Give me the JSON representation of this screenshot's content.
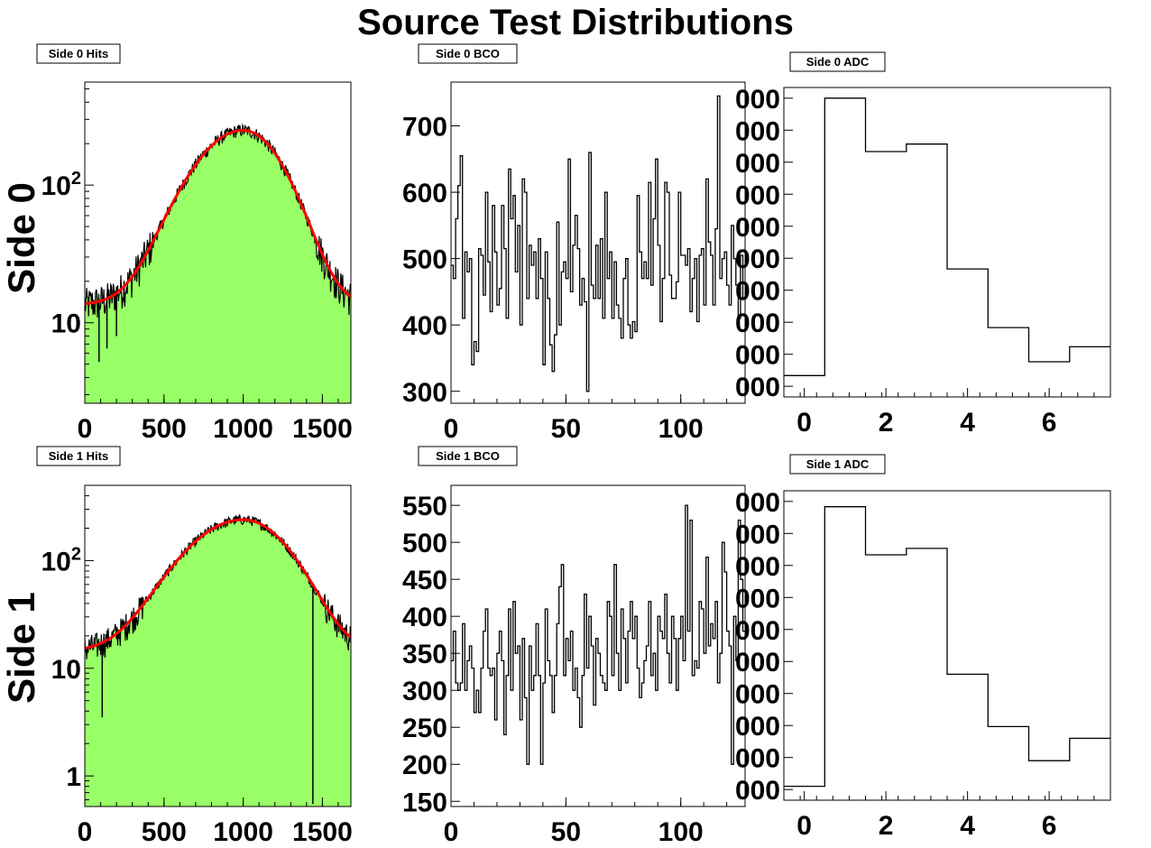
{
  "page_title": "Source Test Distributions",
  "row_labels": [
    "Side 0",
    "Side 1"
  ],
  "colors": {
    "fill": "#99ff66",
    "fit": "#ff0000",
    "line": "#000000"
  },
  "chart_data": [
    {
      "id": "s0-hits",
      "label": "Side 0 Hits",
      "type": "area",
      "log_y": true,
      "xlim": [
        0,
        1680
      ],
      "ylim": [
        2.6,
        560
      ],
      "x_ticks": [
        0,
        500,
        1000,
        1500
      ],
      "x_tick_labels": [
        "0",
        "500",
        "1000",
        "1500"
      ],
      "y_ticks": [
        10,
        100
      ],
      "y_tick_labels": [
        "10",
        "10²"
      ],
      "fit": {
        "peak_x": 1000,
        "peak_y": 250,
        "sigma_left": 270,
        "sigma_right": 220,
        "baseline": 13.5,
        "x_end": 1680
      },
      "spikes": [
        {
          "x": 90,
          "y": 5.2
        },
        {
          "x": 140,
          "y": 6.5
        },
        {
          "x": 200,
          "y": 8
        }
      ]
    },
    {
      "id": "s0-bco",
      "label": "Side 0 BCO",
      "type": "step",
      "xlim": [
        0,
        128
      ],
      "ylim": [
        282,
        766
      ],
      "x_ticks": [
        0,
        50,
        100
      ],
      "x_tick_labels": [
        "0",
        "50",
        "100"
      ],
      "y_ticks": [
        300,
        400,
        500,
        600,
        700
      ],
      "y_tick_labels": [
        "300",
        "400",
        "500",
        "600",
        "700"
      ],
      "values": [
        490,
        470,
        560,
        610,
        655,
        410,
        510,
        480,
        500,
        340,
        375,
        360,
        515,
        505,
        445,
        600,
        495,
        420,
        580,
        510,
        430,
        455,
        580,
        515,
        410,
        635,
        560,
        595,
        480,
        550,
        400,
        620,
        600,
        440,
        520,
        490,
        510,
        440,
        530,
        470,
        340,
        510,
        440,
        370,
        330,
        385,
        555,
        400,
        480,
        495,
        470,
        650,
        450,
        520,
        565,
        515,
        430,
        470,
        435,
        300,
        660,
        460,
        440,
        520,
        440,
        530,
        410,
        600,
        470,
        510,
        410,
        495,
        430,
        410,
        380,
        470,
        500,
        400,
        380,
        405,
        390,
        595,
        510,
        470,
        495,
        470,
        615,
        460,
        560,
        650,
        520,
        405,
        470,
        615,
        600,
        475,
        440,
        440,
        465,
        600,
        505,
        505,
        490,
        515,
        420,
        470,
        500,
        405,
        505,
        515,
        430,
        620,
        525,
        505,
        430,
        545,
        745,
        470,
        500,
        510,
        460,
        430,
        550,
        500,
        460,
        410,
        505,
        440
      ],
      "row": 0
    },
    {
      "id": "s0-adc",
      "label": "Side 0 ADC",
      "type": "step",
      "xlim": [
        -0.5,
        7.5
      ],
      "ylim": [
        18,
        47
      ],
      "bins": [
        0,
        1,
        2,
        3,
        4,
        5,
        6,
        7
      ],
      "values": [
        20,
        46,
        41,
        41.7,
        30,
        24.5,
        21.3,
        22.7
      ],
      "x_ticks": [
        0,
        2,
        4,
        6
      ],
      "x_tick_labels": [
        "0",
        "2",
        "4",
        "6"
      ],
      "y_ticks": [
        19,
        22,
        25,
        28,
        31,
        34,
        37,
        40,
        43,
        46
      ],
      "y_tick_labels": [
        "000",
        "000",
        "000",
        "000",
        "000",
        "000",
        "000",
        "000",
        "000",
        "000"
      ]
    },
    {
      "id": "s1-hits",
      "label": "Side 1 Hits",
      "type": "area",
      "log_y": true,
      "xlim": [
        0,
        1680
      ],
      "ylim": [
        0.52,
        500
      ],
      "x_ticks": [
        0,
        500,
        1000,
        1500
      ],
      "x_tick_labels": [
        "0",
        "500",
        "1000",
        "1500"
      ],
      "y_ticks": [
        1,
        10,
        100
      ],
      "y_tick_labels": [
        "1",
        "10",
        "10²"
      ],
      "fit": {
        "peak_x": 1000,
        "peak_y": 240,
        "sigma_left": 300,
        "sigma_right": 245,
        "baseline": 14.5,
        "x_end": 1680
      },
      "spikes": [
        {
          "x": 110,
          "y": 3.5
        },
        {
          "x": 1440,
          "y": 0.55
        }
      ]
    },
    {
      "id": "s1-bco",
      "label": "Side 1 BCO",
      "type": "step",
      "xlim": [
        0,
        128
      ],
      "ylim": [
        143,
        577
      ],
      "x_ticks": [
        0,
        50,
        100
      ],
      "x_tick_labels": [
        "0",
        "50",
        "100"
      ],
      "y_ticks": [
        150,
        200,
        250,
        300,
        350,
        400,
        450,
        500,
        550
      ],
      "y_tick_labels": [
        "150",
        "200",
        "250",
        "300",
        "350",
        "400",
        "450",
        "500",
        "550"
      ],
      "values": [
        340,
        380,
        310,
        300,
        310,
        390,
        300,
        340,
        360,
        330,
        270,
        300,
        270,
        330,
        380,
        410,
        330,
        320,
        330,
        260,
        350,
        380,
        340,
        240,
        320,
        410,
        300,
        420,
        350,
        360,
        260,
        370,
        290,
        200,
        360,
        300,
        320,
        390,
        320,
        200,
        310,
        410,
        340,
        320,
        270,
        320,
        390,
        440,
        470,
        320,
        370,
        340,
        380,
        300,
        330,
        290,
        250,
        320,
        430,
        330,
        400,
        360,
        280,
        370,
        350,
        320,
        310,
        300,
        420,
        400,
        320,
        470,
        350,
        300,
        410,
        370,
        310,
        380,
        420,
        370,
        400,
        330,
        290,
        310,
        340,
        360,
        420,
        320,
        350,
        300,
        400,
        380,
        370,
        430,
        350,
        310,
        400,
        370,
        300,
        370,
        400,
        340,
        550,
        380,
        530,
        320,
        340,
        330,
        420,
        410,
        350,
        480,
        360,
        390,
        370,
        420,
        310,
        350,
        500,
        460,
        380,
        360,
        200,
        400,
        340,
        530,
        450,
        380
      ],
      "row": 1
    },
    {
      "id": "s1-adc",
      "label": "Side 1 ADC",
      "type": "step",
      "xlim": [
        -0.5,
        7.5
      ],
      "ylim": [
        18,
        47
      ],
      "bins": [
        0,
        1,
        2,
        3,
        4,
        5,
        6,
        7
      ],
      "values": [
        19.3,
        45.5,
        41,
        41.6,
        29.8,
        24.9,
        21.7,
        23.8
      ],
      "x_ticks": [
        0,
        2,
        4,
        6
      ],
      "x_tick_labels": [
        "0",
        "2",
        "4",
        "6"
      ],
      "y_ticks": [
        19,
        22,
        25,
        28,
        31,
        34,
        37,
        40,
        43,
        46
      ],
      "y_tick_labels": [
        "000",
        "000",
        "000",
        "000",
        "000",
        "000",
        "000",
        "000",
        "000",
        "000"
      ]
    }
  ]
}
